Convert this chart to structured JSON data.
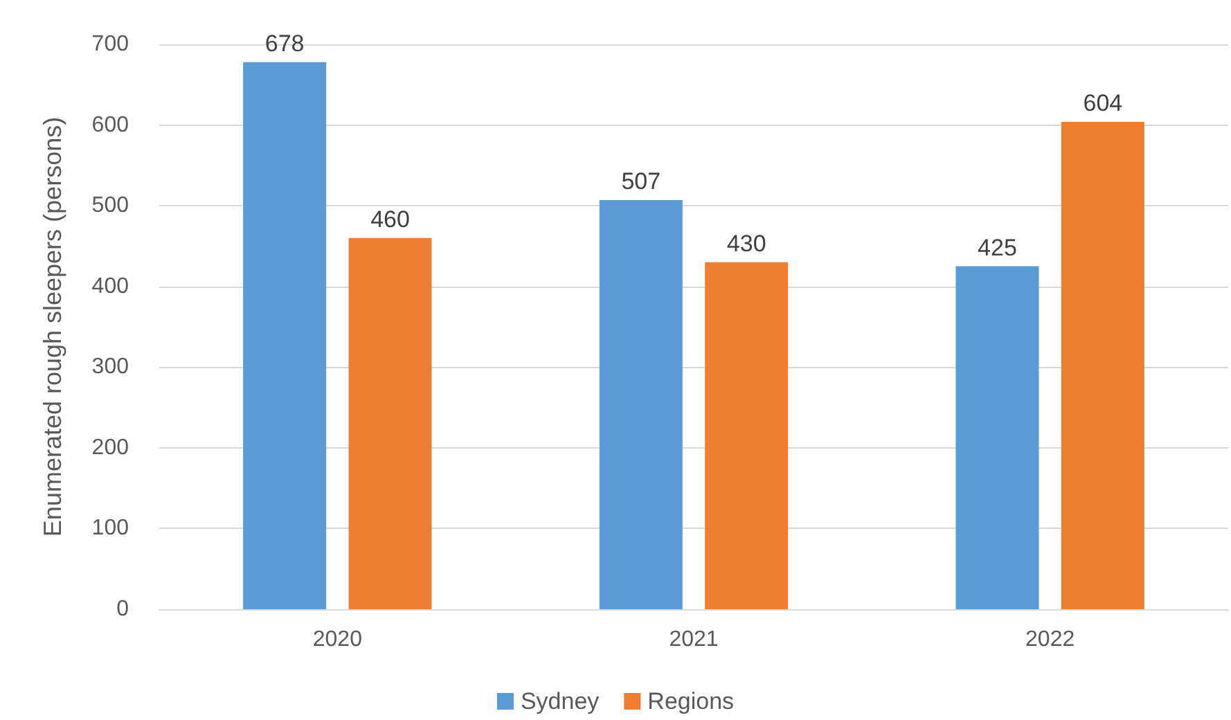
{
  "chart_data": {
    "type": "bar",
    "ylabel": "Enumerated rough sleepers (persons)",
    "categories": [
      "2020",
      "2021",
      "2022"
    ],
    "series": [
      {
        "name": "Sydney",
        "color": "#5b9bd5",
        "values": [
          678,
          507,
          425
        ]
      },
      {
        "name": "Regions",
        "color": "#ed7d31",
        "values": [
          460,
          430,
          604
        ]
      }
    ],
    "ylim": [
      0,
      700
    ],
    "yticks": [
      0,
      100,
      200,
      300,
      400,
      500,
      600,
      700
    ],
    "grid": "y",
    "legend": "bottom",
    "data_labels": true
  }
}
